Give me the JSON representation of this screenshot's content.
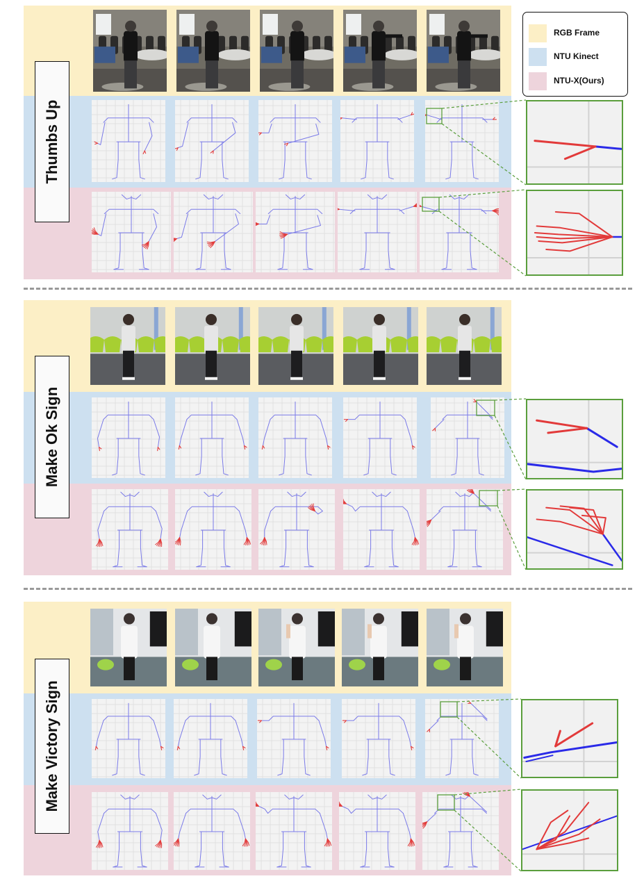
{
  "legend": {
    "items": [
      {
        "label": "RGB Frame",
        "color": "#fcefc6"
      },
      {
        "label": "NTU Kinect",
        "color": "#cde0f0"
      },
      {
        "label": "NTU-X(Ours)",
        "color": "#eed4dc"
      }
    ]
  },
  "colors": {
    "rgb_band": "#fcefc6",
    "kinect_band": "#cde0f0",
    "ntux_band": "#eed4dc",
    "body_skeleton": "#7a7ae8",
    "hand_skeleton": "#e23a3a",
    "zoom_border": "#5a9e3c",
    "divider": "#999999"
  },
  "sections": [
    {
      "label": "Thumbs Up",
      "scene": "office"
    },
    {
      "label": "Make Ok Sign",
      "scene": "chairs"
    },
    {
      "label": "Make Victory Sign",
      "scene": "corner"
    }
  ]
}
